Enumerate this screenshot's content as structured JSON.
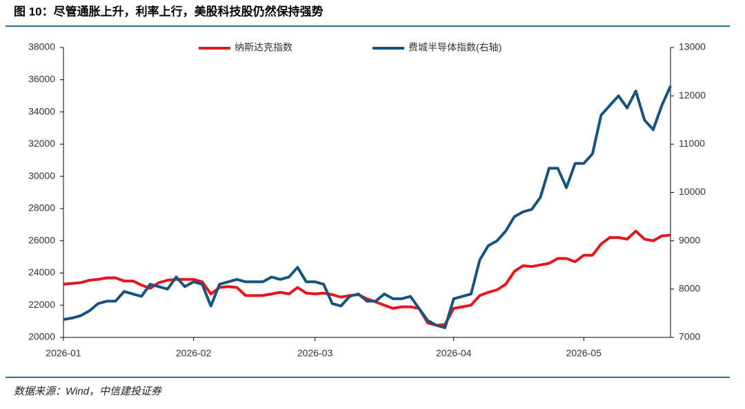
{
  "chart_data": {
    "type": "line",
    "title": "图 10：尽管通胀上升，利率上行，美股科技股仍然保持强势",
    "source": "数据来源：Wind，中信建投证券",
    "categories": [
      "2026-01",
      null,
      null,
      null,
      null,
      null,
      null,
      null,
      null,
      null,
      null,
      null,
      null,
      null,
      null,
      "2026-02",
      null,
      null,
      null,
      null,
      null,
      null,
      null,
      null,
      null,
      null,
      null,
      null,
      null,
      "2026-03",
      null,
      null,
      null,
      null,
      null,
      null,
      null,
      null,
      null,
      null,
      null,
      null,
      null,
      null,
      null,
      "2026-04",
      null,
      null,
      null,
      null,
      null,
      null,
      null,
      null,
      null,
      null,
      null,
      null,
      null,
      null,
      "2026-05",
      null,
      null,
      null,
      null,
      null,
      null,
      null,
      null,
      null,
      null
    ],
    "series": [
      {
        "name": "纳斯达克指数",
        "color": "#e8141c",
        "values": [
          23300,
          23350,
          23400,
          23550,
          23600,
          23700,
          23700,
          23500,
          23500,
          23250,
          23050,
          23400,
          23550,
          23600,
          23600,
          23600,
          23450,
          22700,
          23100,
          23150,
          23100,
          22600,
          22600,
          22600,
          22700,
          22800,
          22700,
          23100,
          22750,
          22700,
          22750,
          22650,
          22500,
          22600,
          22650,
          22400,
          22200,
          22000,
          21800,
          21900,
          21900,
          21800,
          20900,
          20750,
          20800,
          21800,
          21900,
          22000,
          22600,
          22800,
          22950,
          23300,
          24100,
          24450,
          24400,
          24500,
          24600,
          24900,
          24900,
          24700,
          25100,
          25100,
          25800,
          26200,
          26200,
          26100,
          26600,
          26100,
          26000,
          26300,
          26350
        ]
      },
      {
        "name": "费城半导体指数(右轴)",
        "color": "#17537e",
        "axis": "y2",
        "values": [
          7370,
          7400,
          7450,
          7550,
          7700,
          7750,
          7750,
          7950,
          7900,
          7850,
          8100,
          8050,
          8000,
          8250,
          8050,
          8150,
          8100,
          7650,
          8100,
          8150,
          8200,
          8150,
          8150,
          8150,
          8250,
          8200,
          8250,
          8450,
          8150,
          8150,
          8100,
          7700,
          7650,
          7850,
          7900,
          7750,
          7750,
          7900,
          7800,
          7800,
          7850,
          7600,
          7350,
          7250,
          7200,
          7800,
          7850,
          7900,
          8600,
          8900,
          9000,
          9200,
          9500,
          9600,
          9650,
          9900,
          10500,
          10500,
          10100,
          10600,
          10600,
          10800,
          11600,
          11800,
          12000,
          11750,
          12100,
          11500,
          11300,
          11800,
          12200
        ]
      }
    ],
    "ylim": [
      20000,
      38000
    ],
    "yticks": [
      20000,
      22000,
      24000,
      26000,
      28000,
      30000,
      32000,
      34000,
      36000,
      38000
    ],
    "y2lim": [
      7000,
      13000
    ],
    "y2ticks": [
      7000,
      8000,
      9000,
      10000,
      11000,
      12000,
      13000
    ],
    "grid": false,
    "legend": "top"
  }
}
